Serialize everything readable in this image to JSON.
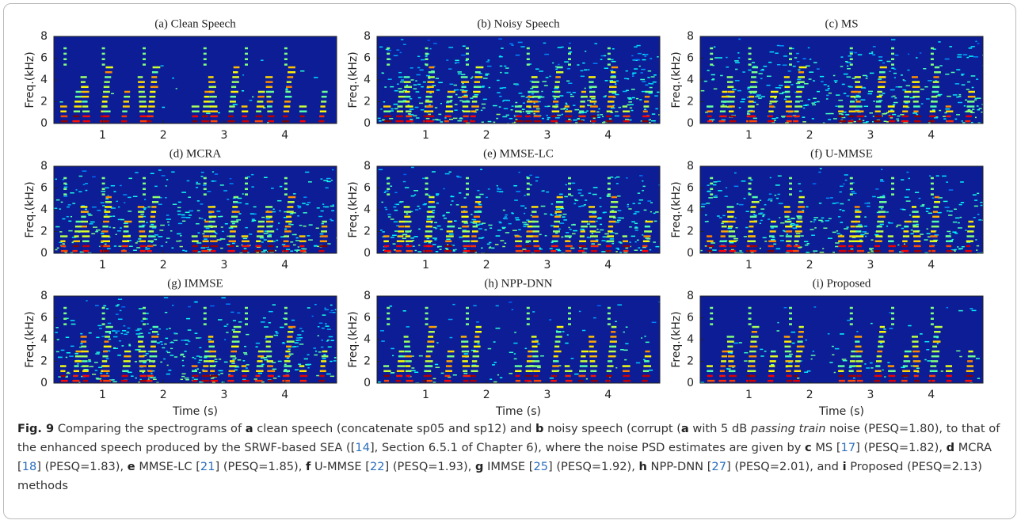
{
  "chart_data": [
    {
      "type": "spectrogram",
      "title": "(a) Clean Speech",
      "ylabel": "Freq.(kHz)",
      "xlim": [
        0.2,
        4.85
      ],
      "ylim": [
        0,
        8
      ],
      "xticks": [
        1,
        2,
        3,
        4
      ],
      "yticks": [
        0,
        2,
        4,
        6,
        8
      ]
    },
    {
      "type": "spectrogram",
      "title": "(b) Noisy Speech",
      "ylabel": "Freq.(kHz)",
      "xlim": [
        0.2,
        4.85
      ],
      "ylim": [
        0,
        8
      ],
      "xticks": [
        1,
        2,
        3,
        4
      ],
      "yticks": [
        0,
        2,
        4,
        6,
        8
      ]
    },
    {
      "type": "spectrogram",
      "title": "(c) MS",
      "ylabel": "Freq.(kHz)",
      "xlim": [
        0.2,
        4.85
      ],
      "ylim": [
        0,
        8
      ],
      "xticks": [
        1,
        2,
        3,
        4
      ],
      "yticks": [
        0,
        2,
        4,
        6,
        8
      ]
    },
    {
      "type": "spectrogram",
      "title": "(d) MCRA",
      "ylabel": "Freq.(kHz)",
      "xlim": [
        0.2,
        4.85
      ],
      "ylim": [
        0,
        8
      ],
      "xticks": [
        1,
        2,
        3,
        4
      ],
      "yticks": [
        0,
        2,
        4,
        6,
        8
      ]
    },
    {
      "type": "spectrogram",
      "title": "(e) MMSE-LC",
      "ylabel": "Freq.(kHz)",
      "xlim": [
        0.2,
        4.85
      ],
      "ylim": [
        0,
        8
      ],
      "xticks": [
        1,
        2,
        3,
        4
      ],
      "yticks": [
        0,
        2,
        4,
        6,
        8
      ]
    },
    {
      "type": "spectrogram",
      "title": "(f) U-MMSE",
      "ylabel": "Freq.(kHz)",
      "xlim": [
        0.2,
        4.85
      ],
      "ylim": [
        0,
        8
      ],
      "xticks": [
        1,
        2,
        3,
        4
      ],
      "yticks": [
        0,
        2,
        4,
        6,
        8
      ]
    },
    {
      "type": "spectrogram",
      "title": "(g) IMMSE",
      "ylabel": "Freq.(kHz)",
      "xlabel": "Time (s)",
      "xlim": [
        0.2,
        4.85
      ],
      "ylim": [
        0,
        8
      ],
      "xticks": [
        1,
        2,
        3,
        4
      ],
      "yticks": [
        0,
        2,
        4,
        6,
        8
      ]
    },
    {
      "type": "spectrogram",
      "title": "(h) NPP-DNN",
      "ylabel": "Freq.(kHz)",
      "xlabel": "Time (s)",
      "xlim": [
        0.2,
        4.85
      ],
      "ylim": [
        0,
        8
      ],
      "xticks": [
        1,
        2,
        3,
        4
      ],
      "yticks": [
        0,
        2,
        4,
        6,
        8
      ]
    },
    {
      "type": "spectrogram",
      "title": "(i) Proposed",
      "ylabel": "Freq.(kHz)",
      "xlabel": "Time (s)",
      "xlim": [
        0.2,
        4.85
      ],
      "ylim": [
        0,
        8
      ],
      "xticks": [
        1,
        2,
        3,
        4
      ],
      "yticks": [
        0,
        2,
        4,
        6,
        8
      ]
    }
  ],
  "caption": [
    {
      "text": "Fig. 9",
      "style": "bold"
    },
    {
      "text": " Comparing the spectrograms of "
    },
    {
      "text": "a",
      "style": "bold"
    },
    {
      "text": " clean speech (concatenate sp05 and sp12) and "
    },
    {
      "text": "b",
      "style": "bold"
    },
    {
      "text": " noisy speech (corrupt ("
    },
    {
      "text": "a",
      "style": "bold"
    },
    {
      "text": " with 5 dB "
    },
    {
      "text": "passing train",
      "style": "italic"
    },
    {
      "text": " noise (PESQ=1.80), to that of the enhanced speech produced by the SRWF-based SEA (["
    },
    {
      "text": "14",
      "style": "link"
    },
    {
      "text": "], Section 6.5.1 of Chapter 6), where the noise PSD estimates are given by "
    },
    {
      "text": "c",
      "style": "bold"
    },
    {
      "text": " MS ["
    },
    {
      "text": "17",
      "style": "link"
    },
    {
      "text": "] (PESQ=1.82), "
    },
    {
      "text": "d",
      "style": "bold"
    },
    {
      "text": " MCRA ["
    },
    {
      "text": "18",
      "style": "link"
    },
    {
      "text": "] (PESQ=1.83), "
    },
    {
      "text": "e",
      "style": "bold"
    },
    {
      "text": " MMSE-LC ["
    },
    {
      "text": "21",
      "style": "link"
    },
    {
      "text": "] (PESQ=1.85), "
    },
    {
      "text": "f",
      "style": "bold"
    },
    {
      "text": " U-MMSE ["
    },
    {
      "text": "22",
      "style": "link"
    },
    {
      "text": "] (PESQ=1.93), "
    },
    {
      "text": "g",
      "style": "bold"
    },
    {
      "text": " IMMSE ["
    },
    {
      "text": "25",
      "style": "link"
    },
    {
      "text": "] (PESQ=1.92), "
    },
    {
      "text": "h",
      "style": "bold"
    },
    {
      "text": " NPP-DNN ["
    },
    {
      "text": "27",
      "style": "link"
    },
    {
      "text": "] (PESQ=2.01), and "
    },
    {
      "text": "i",
      "style": "bold"
    },
    {
      "text": " Proposed (PESQ=2.13) methods"
    }
  ]
}
